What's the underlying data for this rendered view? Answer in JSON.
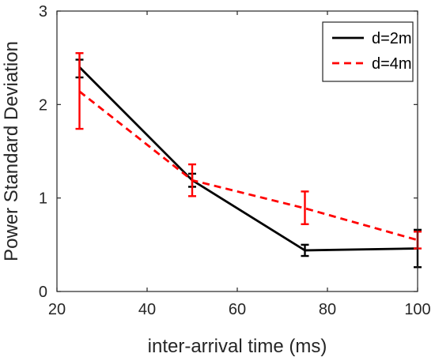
{
  "chart_data": {
    "type": "line",
    "title": "",
    "xlabel": "inter-arrival time (ms)",
    "ylabel": "Power Standard Deviation",
    "xlim": [
      20,
      100
    ],
    "ylim": [
      0,
      3
    ],
    "xticks": [
      20,
      40,
      60,
      80,
      100
    ],
    "xtick_labels": [
      "20",
      "40",
      "60",
      "80",
      "100"
    ],
    "yticks": [
      0,
      1,
      2,
      3
    ],
    "ytick_labels": [
      "0",
      "1",
      "2",
      "3"
    ],
    "grid": false,
    "legend_position": "top-right",
    "series": [
      {
        "name": "d=2m",
        "color": "#000000",
        "line_style": "solid",
        "x": [
          25,
          50,
          75,
          100
        ],
        "y": [
          2.4,
          1.19,
          0.44,
          0.46
        ],
        "error_lower": [
          2.29,
          1.12,
          0.38,
          0.26
        ],
        "error_upper": [
          2.48,
          1.26,
          0.5,
          0.66
        ]
      },
      {
        "name": "d=4m",
        "color": "#ff0000",
        "line_style": "dashed",
        "x": [
          25,
          50,
          75,
          100
        ],
        "y": [
          2.14,
          1.19,
          0.89,
          0.55
        ],
        "error_lower": [
          1.74,
          1.02,
          0.72,
          0.46
        ],
        "error_upper": [
          2.55,
          1.36,
          1.07,
          0.64
        ]
      }
    ]
  }
}
